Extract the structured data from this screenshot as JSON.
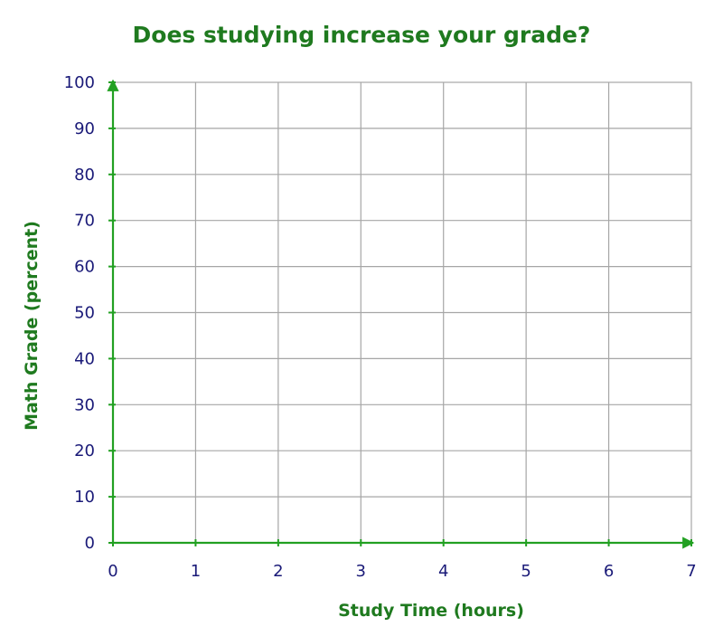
{
  "chart_data": {
    "type": "scatter",
    "title": "Does studying increase your grade?",
    "xlabel": "Study Time (hours)",
    "ylabel": "Math Grade (percent)",
    "xlim": [
      0,
      7
    ],
    "ylim": [
      0,
      100
    ],
    "x_ticks": [
      "0",
      "1",
      "2",
      "3",
      "4",
      "5",
      "6",
      "7"
    ],
    "y_ticks": [
      "0",
      "10",
      "20",
      "30",
      "40",
      "50",
      "60",
      "70",
      "80",
      "90",
      "100"
    ],
    "series": [],
    "grid": true,
    "colors": {
      "title": "#1f7a1f",
      "axis_title": "#1f7a1f",
      "axis_line": "#22a022",
      "tick_label": "#1a1a78",
      "grid": "#a6a6a6"
    }
  }
}
